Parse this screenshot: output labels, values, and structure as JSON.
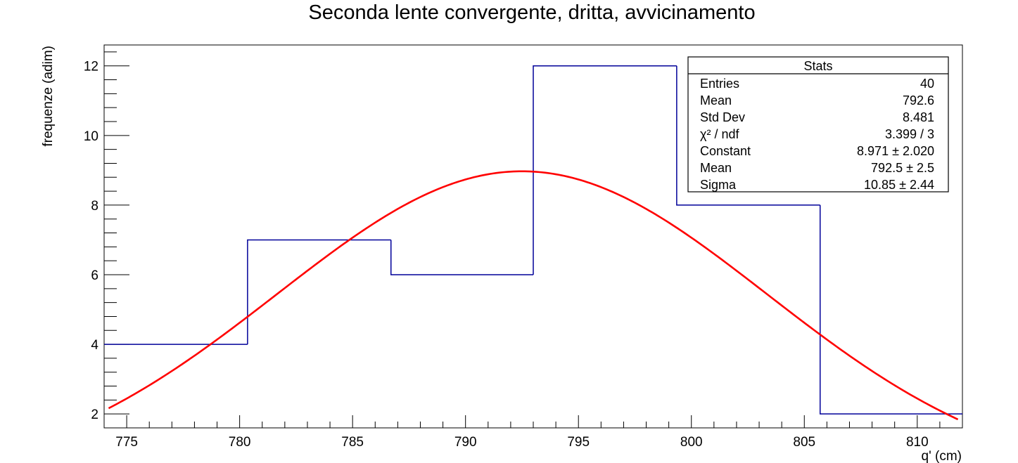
{
  "chart_data": {
    "type": "bar",
    "title": "Seconda lente convergente, dritta, avvicinamento",
    "xlabel": "q' (cm)",
    "ylabel": "frequenze (adim)",
    "xlim": [
      774.0,
      812.0
    ],
    "ylim": [
      1.6,
      12.6
    ],
    "x_ticks": [
      775,
      780,
      785,
      790,
      795,
      800,
      805,
      810
    ],
    "y_ticks": [
      2,
      4,
      6,
      8,
      10,
      12
    ],
    "bins": {
      "edges": [
        774.0,
        780.35,
        786.7,
        793.0,
        799.35,
        805.7,
        812.0
      ],
      "counts": [
        4,
        7,
        6,
        12,
        8,
        2
      ]
    },
    "fit": {
      "function": "gaus",
      "constant": 8.971,
      "mean": 792.5,
      "sigma": 10.85,
      "color": "#ff0000"
    },
    "histogram_color": "#000099",
    "grid": false,
    "stats_box": {
      "title": "Stats",
      "position": "top-right",
      "rows": [
        {
          "label": "Entries",
          "value": "40"
        },
        {
          "label": "Mean",
          "value": "792.6"
        },
        {
          "label": "Std Dev",
          "value": "8.481"
        },
        {
          "label": "χ² / ndf",
          "value": "3.399 / 3"
        },
        {
          "label": "Constant",
          "value": "8.971 ± 2.020"
        },
        {
          "label": "Mean",
          "value": "792.5 ± 2.5"
        },
        {
          "label": "Sigma",
          "value": "10.85 ± 2.44"
        }
      ]
    }
  }
}
